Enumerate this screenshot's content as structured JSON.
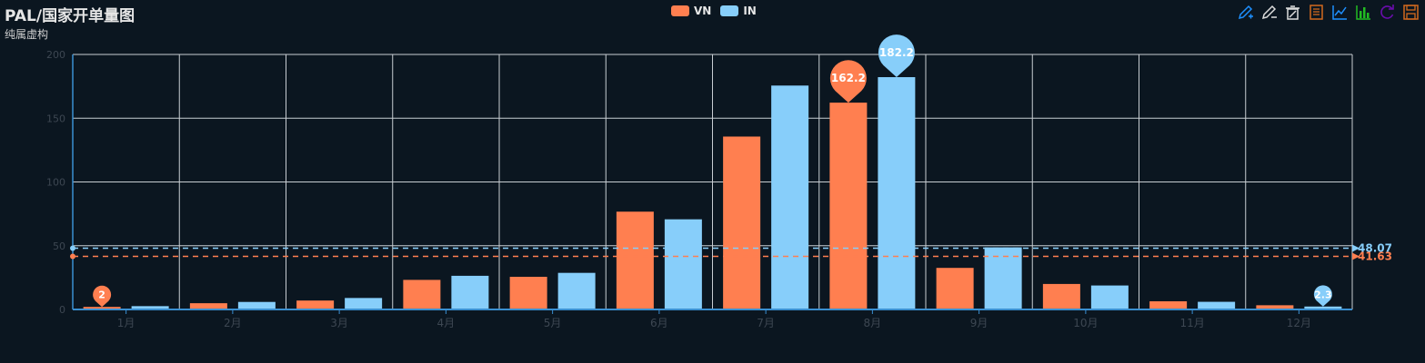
{
  "header": {
    "title": "PAL/国家开单量图",
    "subtitle": "纯属虚构"
  },
  "legend": [
    {
      "label": "VN",
      "color": "#ff7f50"
    },
    {
      "label": "IN",
      "color": "#87cefa"
    }
  ],
  "toolbox": [
    {
      "name": "mark-icon",
      "color": "#1e90ff"
    },
    {
      "name": "mark-undo-icon",
      "color": "#dddddd"
    },
    {
      "name": "mark-clear-icon",
      "color": "#dddddd"
    },
    {
      "name": "data-view-icon",
      "color": "#d2691e"
    },
    {
      "name": "line-chart-icon",
      "color": "#1e90ff"
    },
    {
      "name": "bar-chart-icon",
      "color": "#22bb22"
    },
    {
      "name": "restore-icon",
      "color": "#6a0dad"
    },
    {
      "name": "save-image-icon",
      "color": "#d2691e"
    }
  ],
  "chart_data": {
    "type": "bar",
    "categories": [
      "1月",
      "2月",
      "3月",
      "4月",
      "5月",
      "6月",
      "7月",
      "8月",
      "9月",
      "10月",
      "11月",
      "12月"
    ],
    "series": [
      {
        "name": "VN",
        "color": "#ff7f50",
        "values": [
          2,
          4.9,
          7,
          23.2,
          25.6,
          76.7,
          135.6,
          162.2,
          32.6,
          20,
          6.4,
          3.3
        ],
        "max_marker": "162.2",
        "min_marker": "2",
        "average": "41.63"
      },
      {
        "name": "IN",
        "color": "#87cefa",
        "values": [
          2.6,
          5.9,
          9,
          26.4,
          28.7,
          70.7,
          175.6,
          182.2,
          48.7,
          18.8,
          6,
          2.3
        ],
        "max_marker": "182.2",
        "min_marker": "2.3",
        "average": "48.07"
      }
    ],
    "y_ticks": [
      "0",
      "50",
      "100",
      "150",
      "200"
    ],
    "ylim": [
      0,
      200
    ],
    "grid": true,
    "legend_position": "top-center"
  }
}
